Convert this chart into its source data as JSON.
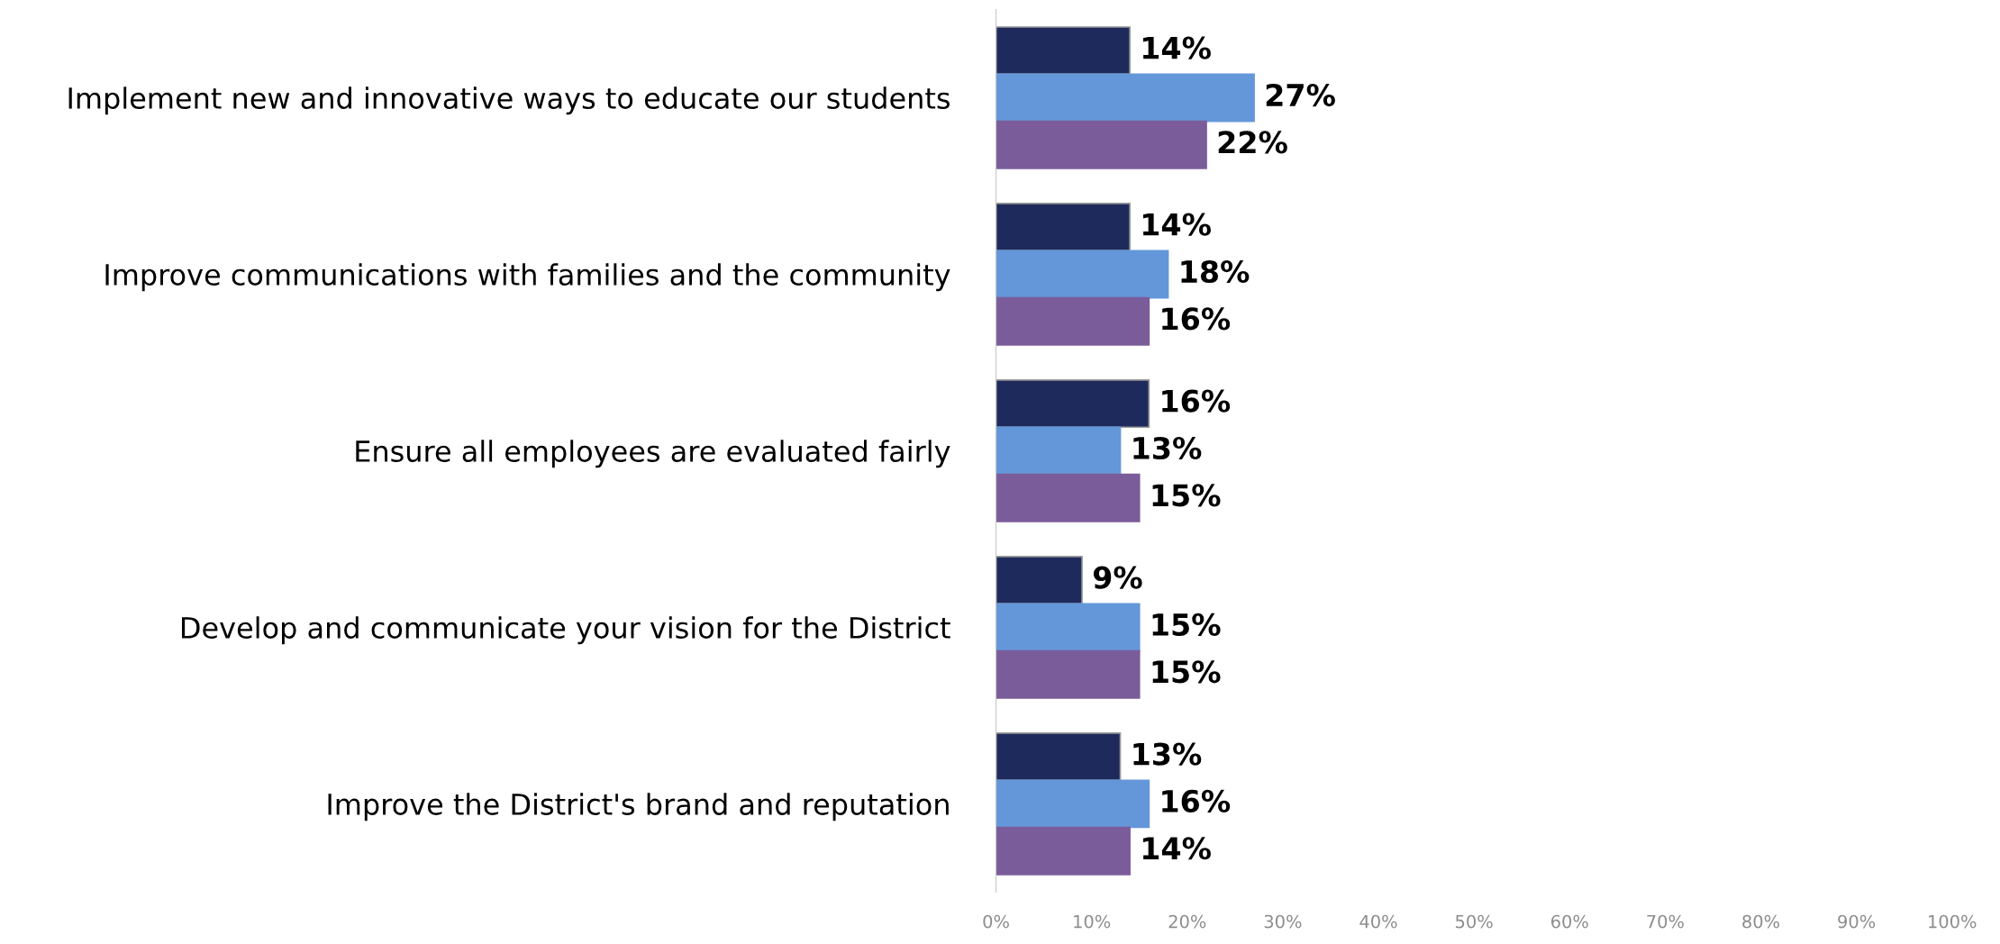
{
  "chart_data": {
    "type": "bar",
    "orientation": "horizontal",
    "categories": [
      "Implement new and innovative ways to educate our students",
      "Improve communications with families and the community",
      "Ensure all employees are evaluated fairly",
      "Develop and communicate your vision for the District",
      "Improve the District's brand and reputation"
    ],
    "series": [
      {
        "color": "#1f2a5c",
        "values": [
          14,
          14,
          16,
          9,
          13
        ],
        "value_labels": [
          "14%",
          "14%",
          "16%",
          "9%",
          "13%"
        ]
      },
      {
        "color": "#6497d9",
        "values": [
          27,
          18,
          13,
          15,
          16
        ],
        "value_labels": [
          "27%",
          "18%",
          "13%",
          "15%",
          "16%"
        ]
      },
      {
        "color": "#7b5c9b",
        "values": [
          22,
          16,
          15,
          15,
          14
        ],
        "value_labels": [
          "22%",
          "16%",
          "15%",
          "15%",
          "14%"
        ]
      }
    ],
    "xlim": [
      0,
      100
    ],
    "xticks": [
      {
        "value": 0,
        "label": "0%"
      },
      {
        "value": 10,
        "label": "10%"
      },
      {
        "value": 20,
        "label": "20%"
      },
      {
        "value": 30,
        "label": "30%"
      },
      {
        "value": 40,
        "label": "40%"
      },
      {
        "value": 50,
        "label": "50%"
      },
      {
        "value": 60,
        "label": "60%"
      },
      {
        "value": 70,
        "label": "70%"
      },
      {
        "value": 80,
        "label": "80%"
      },
      {
        "value": 90,
        "label": "90%"
      },
      {
        "value": 100,
        "label": "100%"
      }
    ],
    "grid": false,
    "legend": false
  }
}
